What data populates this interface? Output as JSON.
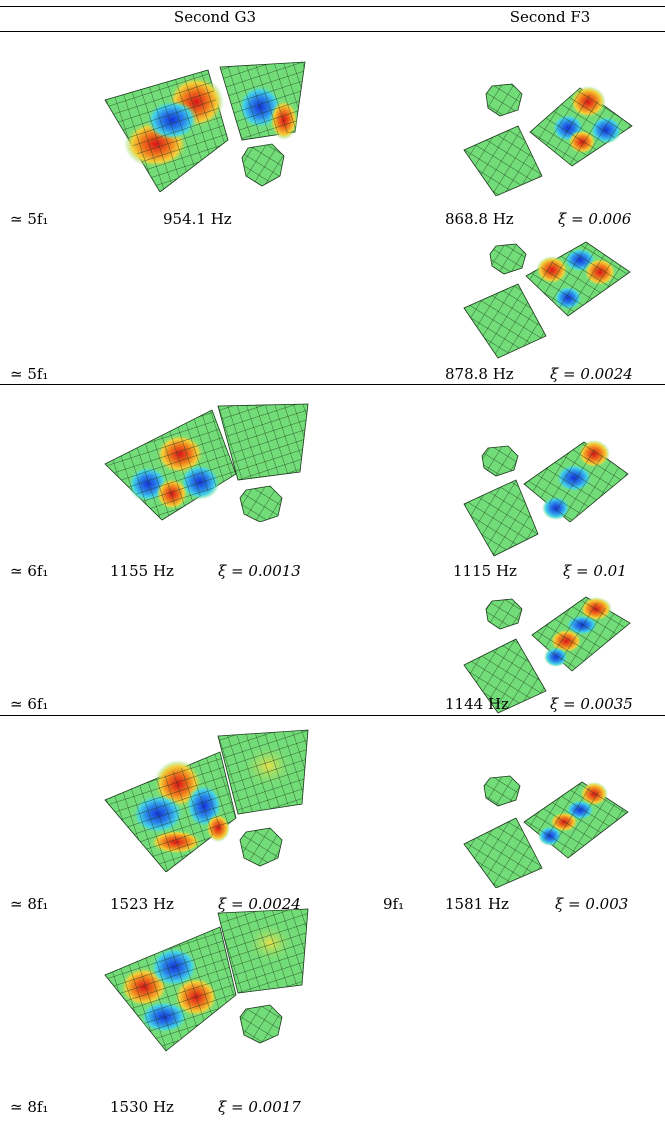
{
  "header": {
    "col1": "Second G3",
    "col2": "Second F3"
  },
  "rows": [
    {
      "left": {
        "harmonic": "≃ 5f₁",
        "freq": "954.1 Hz",
        "xi": ""
      },
      "right": {
        "harmonic": "",
        "freq": "868.8 Hz",
        "xi": "ξ = 0.006"
      }
    },
    {
      "left": {
        "harmonic": "≃ 5f₁",
        "freq": "",
        "xi": ""
      },
      "right": {
        "harmonic": "",
        "freq": "878.8 Hz",
        "xi": "ξ = 0.0024"
      }
    },
    {
      "left": {
        "harmonic": "≃ 6f₁",
        "freq": "1155 Hz",
        "xi": "ξ = 0.0013"
      },
      "right": {
        "harmonic": "",
        "freq": "1115 Hz",
        "xi": "ξ = 0.01"
      }
    },
    {
      "left": {
        "harmonic": "≃ 6f₁",
        "freq": "",
        "xi": ""
      },
      "right": {
        "harmonic": "",
        "freq": "1144 Hz",
        "xi": "ξ = 0.0035"
      }
    },
    {
      "left": {
        "harmonic": "≃ 8f₁",
        "freq": "1523 Hz",
        "xi": "ξ = 0.0024"
      },
      "right": {
        "harmonic": "9f₁",
        "freq": "1581 Hz",
        "xi": "ξ = 0.003"
      }
    },
    {
      "left": {
        "harmonic": "≃ 8f₁",
        "freq": "1530 Hz",
        "xi": "ξ = 0.0017"
      },
      "right": {
        "harmonic": "",
        "freq": "",
        "xi": ""
      }
    }
  ],
  "colors": {
    "neutral": "#6de07a",
    "mesh": "#1c3a1c",
    "peak": "#e8231d",
    "trough": "#1a4be0",
    "warm": "#f5c832"
  }
}
